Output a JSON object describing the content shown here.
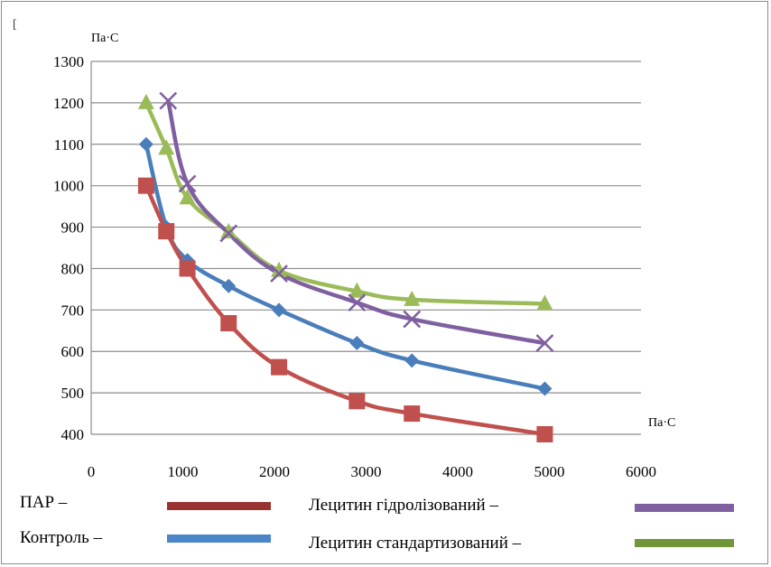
{
  "chart_data": {
    "type": "line",
    "x_unit_label": "Па·С",
    "y_unit_label": "Па·С",
    "xlim": [
      0,
      6000
    ],
    "ylim": [
      400,
      1300
    ],
    "x_ticks": [
      "0",
      "1000",
      "2000",
      "3000",
      "4000",
      "5000",
      "6000"
    ],
    "y_ticks": [
      "400",
      "500",
      "600",
      "700",
      "800",
      "900",
      "1000",
      "1100",
      "1200",
      "1300"
    ],
    "grid": "horizontal",
    "legend_position": "bottom",
    "series": [
      {
        "name": "ПАР –",
        "color": "#c0504d",
        "marker": "square",
        "x": [
          600,
          820,
          1050,
          1500,
          2050,
          2900,
          3500,
          4950
        ],
        "y": [
          1000,
          890,
          800,
          668,
          562,
          480,
          450,
          400
        ]
      },
      {
        "name": "Контроль –",
        "color": "#4a7ebb",
        "marker": "diamond",
        "x": [
          600,
          820,
          1050,
          1500,
          2050,
          2900,
          3500,
          4950
        ],
        "y": [
          1100,
          900,
          820,
          758,
          700,
          620,
          578,
          510
        ]
      },
      {
        "name": "Лецитин гідролізований –",
        "color": "#7f5fa0",
        "marker": "cross",
        "x": [
          840,
          1050,
          1500,
          2050,
          2900,
          3500,
          4950
        ],
        "y": [
          1205,
          1005,
          885,
          788,
          718,
          678,
          620
        ]
      },
      {
        "name": "Лецитин стандартизований –",
        "color": "#9bbb59",
        "marker": "triangle",
        "x": [
          600,
          820,
          1050,
          1500,
          2050,
          2900,
          3500,
          4950
        ],
        "y": [
          1200,
          1090,
          970,
          888,
          795,
          745,
          725,
          715
        ]
      }
    ],
    "legend_swatch_colors": [
      "#9b3232",
      "#4a86c8",
      "#7f5fa0",
      "#70963a"
    ]
  },
  "icons": {
    "corner": "bracket-glyph"
  },
  "corner_glyph": "[",
  "corner_dot": "."
}
